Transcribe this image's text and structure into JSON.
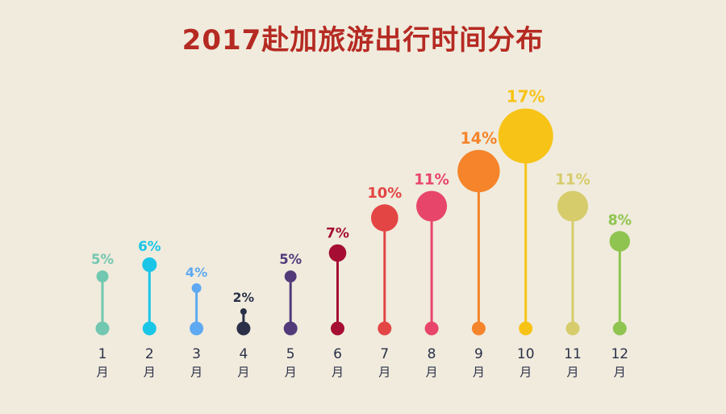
{
  "chart_data": {
    "type": "lollipop",
    "title": "2017赴加旅游出行时间分布",
    "categories": [
      "1",
      "2",
      "3",
      "4",
      "5",
      "6",
      "7",
      "8",
      "9",
      "10",
      "11",
      "12"
    ],
    "unit_label": "月",
    "values": [
      5,
      6,
      4,
      2,
      5,
      7,
      10,
      11,
      14,
      17,
      11,
      8
    ],
    "value_labels": [
      "5%",
      "6%",
      "4%",
      "2%",
      "5%",
      "7%",
      "10%",
      "11%",
      "14%",
      "17%",
      "11%",
      "8%"
    ],
    "colors": [
      "#72c7b0",
      "#1ac6e8",
      "#5ea9f2",
      "#2b3048",
      "#523a7a",
      "#a60d33",
      "#e34545",
      "#e8456a",
      "#f5842a",
      "#f7c316",
      "#d6cc6b",
      "#8ec44f"
    ]
  }
}
